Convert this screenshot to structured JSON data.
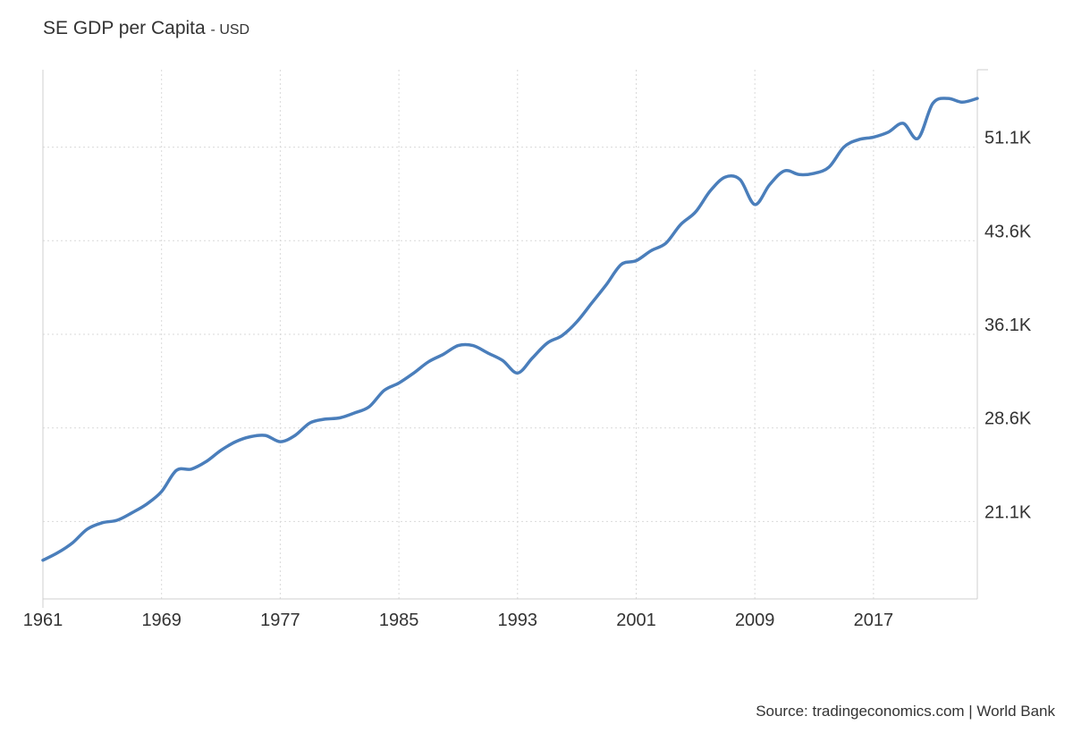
{
  "header": {
    "title": "SE GDP per Capita",
    "unit": "- USD"
  },
  "source_text": "Source: tradingeconomics.com | World Bank",
  "chart_data": {
    "type": "line",
    "title": "SE GDP per Capita",
    "unit": "USD",
    "x_ticks": [
      "1961",
      "1969",
      "1977",
      "1985",
      "1993",
      "2001",
      "2009",
      "2017"
    ],
    "y_ticks": [
      {
        "value": 21100,
        "label": "21.1K"
      },
      {
        "value": 28600,
        "label": "28.6K"
      },
      {
        "value": 36100,
        "label": "36.1K"
      },
      {
        "value": 43600,
        "label": "43.6K"
      },
      {
        "value": 51100,
        "label": "51.1K"
      }
    ],
    "xlim": [
      1961,
      2024
    ],
    "ylim": [
      14900,
      57300
    ],
    "grid": true,
    "line_color": "#4a7ebb",
    "series": [
      {
        "x": [
          1961,
          1962,
          1963,
          1964,
          1965,
          1966,
          1967,
          1968,
          1969,
          1970,
          1971,
          1972,
          1973,
          1974,
          1975,
          1976,
          1977,
          1978,
          1979,
          1980,
          1981,
          1982,
          1983,
          1984,
          1985,
          1986,
          1987,
          1988,
          1989,
          1990,
          1991,
          1992,
          1993,
          1994,
          1995,
          1996,
          1997,
          1998,
          1999,
          2000,
          2001,
          2002,
          2003,
          2004,
          2005,
          2006,
          2007,
          2008,
          2009,
          2010,
          2011,
          2012,
          2013,
          2014,
          2015,
          2016,
          2017,
          2018,
          2019,
          2020,
          2021,
          2022,
          2023,
          2024
        ],
        "values": [
          18000,
          18600,
          19400,
          20500,
          21000,
          21200,
          21800,
          22500,
          23500,
          25200,
          25300,
          25900,
          26800,
          27500,
          27900,
          28000,
          27500,
          28000,
          29000,
          29300,
          29400,
          29800,
          30300,
          31600,
          32200,
          33000,
          33900,
          34500,
          35200,
          35200,
          34600,
          34000,
          33000,
          34200,
          35400,
          36000,
          37100,
          38600,
          40100,
          41700,
          42000,
          42800,
          43400,
          44900,
          45900,
          47600,
          48700,
          48500,
          46500,
          48100,
          49200,
          48900,
          49000,
          49500,
          51100,
          51700,
          51900,
          52300,
          53000,
          51800,
          54600,
          55000,
          54700,
          55000
        ]
      }
    ]
  }
}
